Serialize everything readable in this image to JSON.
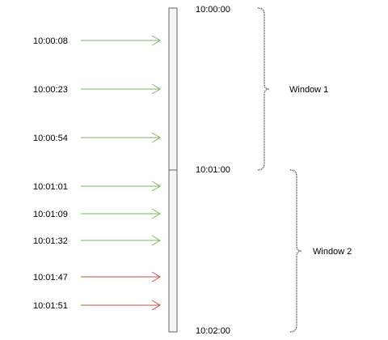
{
  "events": [
    {
      "time": "10:00:08",
      "status": "on-time"
    },
    {
      "time": "10:00:23",
      "status": "on-time"
    },
    {
      "time": "10:00:54",
      "status": "on-time"
    },
    {
      "time": "10:01:01",
      "status": "on-time"
    },
    {
      "time": "10:01:09",
      "status": "on-time"
    },
    {
      "time": "10:01:32",
      "status": "on-time"
    },
    {
      "time": "10:01:47",
      "status": "late"
    },
    {
      "time": "10:01:51",
      "status": "late"
    }
  ],
  "boundaries": [
    {
      "time": "10:00:00"
    },
    {
      "time": "10:01:00"
    },
    {
      "time": "10:02:00"
    }
  ],
  "windows": [
    {
      "label": "Window 1"
    },
    {
      "label": "Window 2"
    }
  ],
  "colors": {
    "on_time_arrow": "#82b366",
    "late_arrow": "#b85450",
    "timeline_fill": "#f5f5f5",
    "timeline_stroke": "#666666",
    "brace": "#000000",
    "text": "#000000"
  }
}
